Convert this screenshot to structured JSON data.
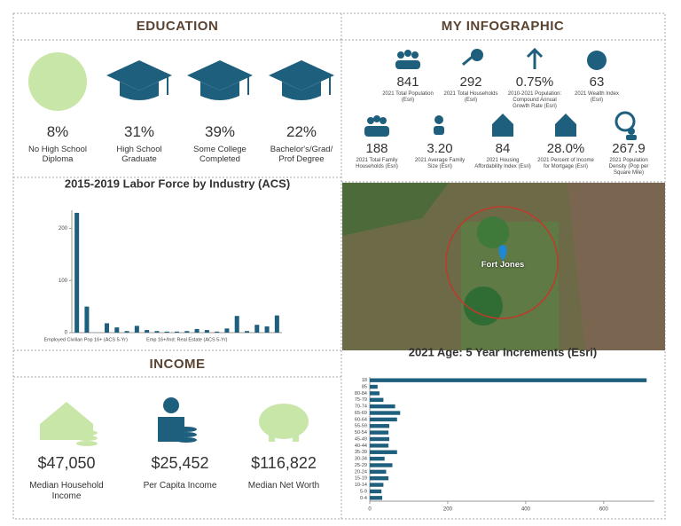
{
  "education": {
    "title": "EDUCATION",
    "items": [
      {
        "value": "8%",
        "label": "No High School Diploma"
      },
      {
        "value": "31%",
        "label": "High School Graduate"
      },
      {
        "value": "39%",
        "label": "Some College Completed"
      },
      {
        "value": "22%",
        "label": "Bachelor's/Grad/ Prof Degree"
      }
    ]
  },
  "infographic": {
    "title": "MY INFOGRAPHIC",
    "items": [
      {
        "value": "841",
        "label": "2021 Total Population (Esri)"
      },
      {
        "value": "292",
        "label": "2021 Total Households (Esri)"
      },
      {
        "value": "0.75%",
        "label": "2010-2021 Population: Compound Annual Growth Rate (Esri)"
      },
      {
        "value": "63",
        "label": "2021 Wealth Index (Esri)"
      },
      {
        "value": "188",
        "label": "2021 Total Family Households (Esri)"
      },
      {
        "value": "3.20",
        "label": "2021 Average Family Size (Esri)"
      },
      {
        "value": "84",
        "label": "2021 Housing Affordability Index (Esri)"
      },
      {
        "value": "28.0%",
        "label": "2021 Percent of Income for Mortgage (Esri)"
      },
      {
        "value": "267.9",
        "label": "2021 Population Density (Pop per Square Mile)"
      }
    ]
  },
  "map": {
    "place": "Fort Jones"
  },
  "income": {
    "title": "INCOME",
    "items": [
      {
        "value": "$47,050",
        "label": "Median Household Income"
      },
      {
        "value": "$25,452",
        "label": "Per Capita Income"
      },
      {
        "value": "$116,822",
        "label": "Median Net Worth"
      }
    ]
  },
  "chart_data": [
    {
      "type": "bar",
      "title": "2015-2019 Labor Force by Industry (ACS)",
      "categories": [
        "Employed Civilian Pop 16+ (ACS 5-Yr)",
        null,
        null,
        null,
        null,
        null,
        null,
        null,
        null,
        null,
        null,
        "Emp 16+/Ind: Real Estate (ACS 5-Yr)",
        null,
        null,
        null,
        null,
        null,
        null,
        null,
        null,
        null
      ],
      "values": [
        230,
        50,
        0,
        18,
        10,
        3,
        13,
        5,
        3,
        2,
        2,
        3,
        7,
        5,
        2,
        8,
        32,
        3,
        15,
        12,
        33
      ],
      "color": "#1d5f7c",
      "ylim": [
        0,
        235
      ],
      "yticks": [
        0,
        100,
        200
      ]
    },
    {
      "type": "hbar",
      "title": "2021 Age: 5 Year Increments (Esri)",
      "categories": [
        "18",
        "85",
        "80-84",
        "75-79",
        "70-74",
        "65-69",
        "60-64",
        "55-59",
        "50-54",
        "45-49",
        "40-44",
        "35-39",
        "30-34",
        "25-29",
        "20-24",
        "15-19",
        "10-14",
        "5-9",
        "0-4"
      ],
      "values": [
        710,
        20,
        25,
        35,
        65,
        78,
        70,
        50,
        48,
        50,
        48,
        70,
        38,
        58,
        42,
        48,
        35,
        30,
        32
      ],
      "color": "#1d5f7c",
      "xlim": [
        0,
        730
      ],
      "xticks": [
        0,
        200,
        400,
        600
      ]
    }
  ]
}
